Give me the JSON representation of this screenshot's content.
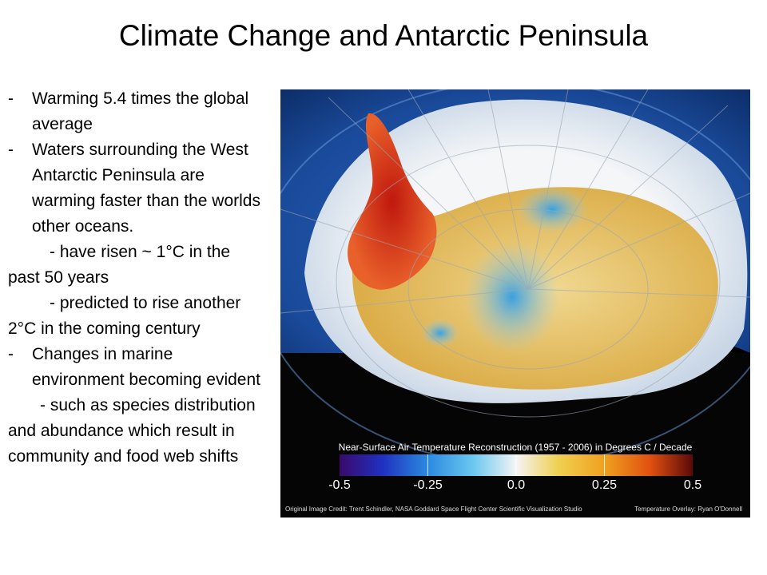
{
  "slide": {
    "title": "Climate Change and Antarctic Peninsula",
    "bullets": {
      "b1_dash": "-",
      "b1": "Warming 5.4 times the global average",
      "b2_dash": "-",
      "b2": "Waters surrounding the West Antarctic Peninsula are warming faster than the worlds other oceans.",
      "s1": "- have risen ~ 1°C in the past 50 years",
      "s2": "- predicted to rise another 2°C in the coming century",
      "b3_dash": "-",
      "b3": "Changes in marine environment becoming evident",
      "s3": "- such as species distribution and abundance which result in community and food web shifts"
    }
  },
  "figure": {
    "scale_title": "Near-Surface Air Temperature Reconstruction (1957 - 2006) in Degrees C / Decade",
    "tick_labels": [
      "-0.5",
      "-0.25",
      "0.0",
      "0.25",
      "0.5"
    ],
    "credit_left": "Original Image Credit:  Trent Schindler, NASA Goddard Space Flight Center Scientific Visualization Studio",
    "credit_right": "Temperature Overlay:  Ryan O'Donnell",
    "colors": {
      "ocean": "#1a4a9a",
      "sea_ice": "#eef2f6",
      "cool": "#4aa8d8",
      "neutral": "#f0e6c0",
      "warm_yellow": "#e0b840",
      "warm_orange": "#e06a20",
      "hot_red": "#c81e14"
    }
  }
}
